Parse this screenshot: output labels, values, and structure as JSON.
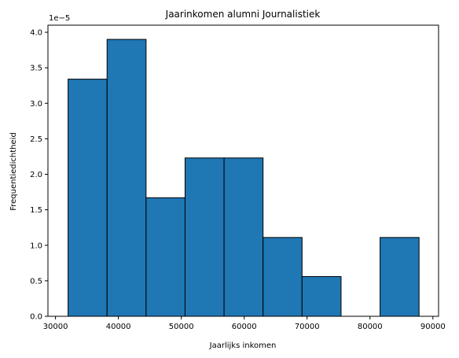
{
  "chart_data": {
    "type": "bar",
    "title": "Jaarinkomen alumni Journalistiek",
    "xlabel": "Jaarlijks inkomen",
    "ylabel": "Frequentiedichtheid",
    "y_offset_label": "1e−5",
    "xlim": [
      28800,
      90900
    ],
    "ylim": [
      0,
      4.1
    ],
    "x_ticks": [
      30000,
      40000,
      50000,
      60000,
      70000,
      80000,
      90000
    ],
    "x_tick_labels": [
      "30000",
      "40000",
      "50000",
      "60000",
      "70000",
      "80000",
      "90000"
    ],
    "y_ticks": [
      0,
      0.5,
      1.0,
      1.5,
      2.0,
      2.5,
      3.0,
      3.5,
      4.0
    ],
    "y_tick_labels": [
      "0.0",
      "0.5",
      "1.0",
      "1.5",
      "2.0",
      "2.5",
      "3.0",
      "3.5",
      "4.0"
    ],
    "bin_edges": [
      32000,
      38200,
      44400,
      50600,
      56800,
      63000,
      69200,
      75400,
      81600,
      87800
    ],
    "values": [
      3.34,
      3.9,
      1.67,
      2.23,
      2.23,
      1.11,
      0.56,
      0,
      1.11
    ],
    "bar_color": "#1f77b4",
    "edge_color": "#000000",
    "grid": false
  }
}
